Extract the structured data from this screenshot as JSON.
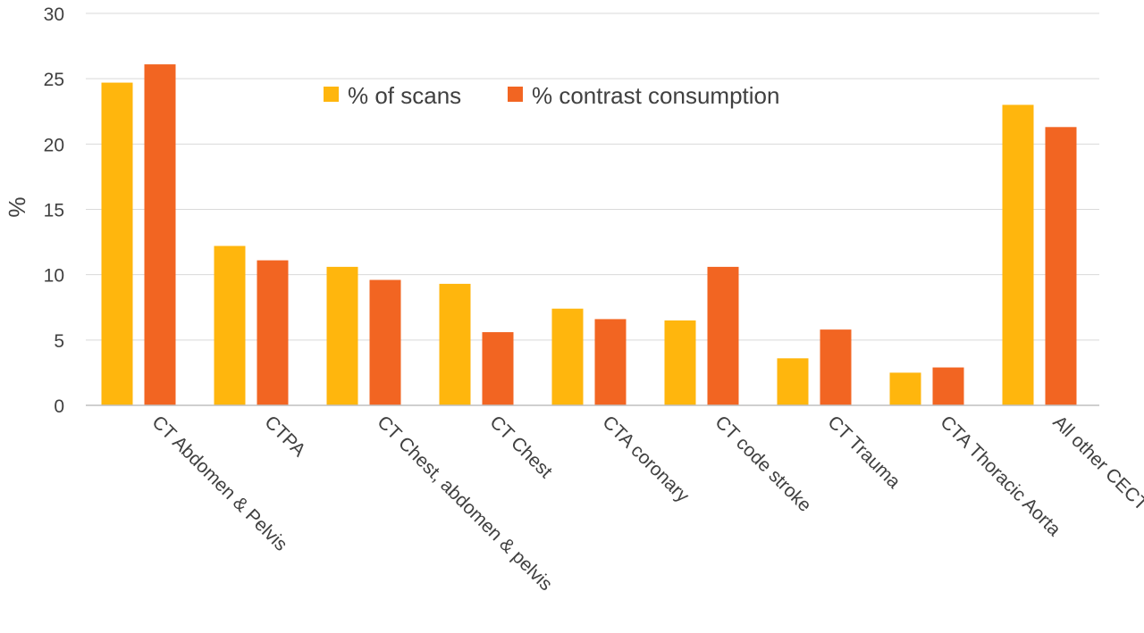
{
  "chart_data": {
    "type": "bar",
    "title": "",
    "xlabel": "",
    "ylabel": "%",
    "ylim": [
      0,
      30
    ],
    "yticks": [
      0,
      5,
      10,
      15,
      20,
      25,
      30
    ],
    "grid": true,
    "legend_position": "top-center",
    "categories": [
      "CT Abdomen & Pelvis",
      "CTPA",
      "CT Chest, abdomen & pelvis",
      "CT Chest",
      "CTA coronary",
      "CT code stroke",
      "CT Trauma",
      "CTA Thoracic Aorta",
      "All other CECT"
    ],
    "series": [
      {
        "name": "% of scans",
        "color": "#FFB60D",
        "values": [
          24.7,
          12.2,
          10.6,
          9.3,
          7.4,
          6.5,
          3.6,
          2.5,
          23.0
        ]
      },
      {
        "name": "% contrast consumption",
        "color": "#F26522",
        "values": [
          26.1,
          11.1,
          9.6,
          5.6,
          6.6,
          10.6,
          5.8,
          2.9,
          21.3
        ]
      }
    ]
  }
}
